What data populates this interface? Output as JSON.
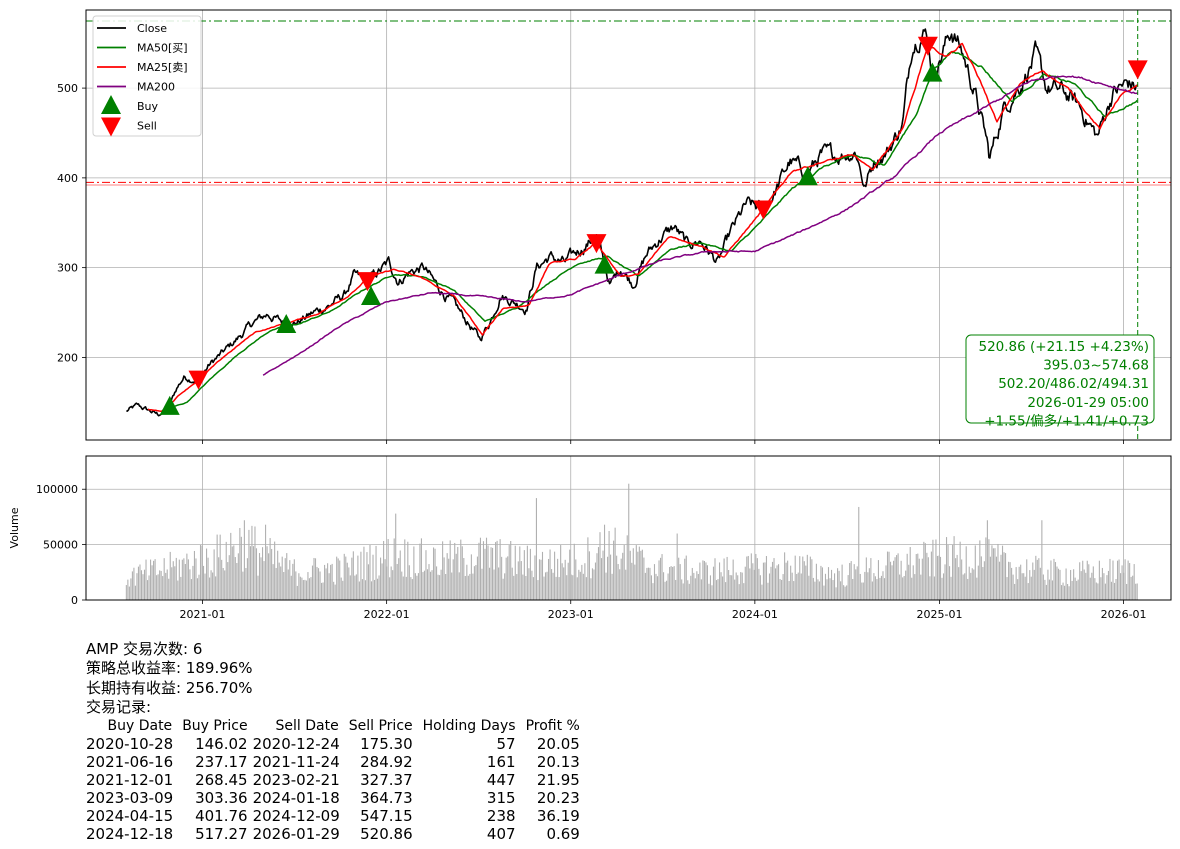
{
  "chart_data": [
    {
      "type": "line",
      "symbol": "AMP",
      "ylim": [
        108,
        587
      ],
      "yticks": [
        200,
        300,
        400,
        500
      ],
      "xlim": [
        "2020-05-15",
        "2026-04-05"
      ],
      "xticks": [
        "2021-01",
        "2022-01",
        "2023-01",
        "2024-01",
        "2025-01",
        "2026-01"
      ],
      "grid": true,
      "legend_position": "upper-left",
      "legend": [
        {
          "label": "Close",
          "color": "#000000",
          "kind": "line"
        },
        {
          "label": "MA50[买]",
          "color": "#008000",
          "kind": "line"
        },
        {
          "label": "MA25[卖]",
          "color": "#ff0000",
          "kind": "line"
        },
        {
          "label": "MA200",
          "color": "#800080",
          "kind": "line"
        },
        {
          "label": "Buy",
          "color": "#008000",
          "kind": "marker-up"
        },
        {
          "label": "Sell",
          "color": "#ff0000",
          "kind": "marker-down"
        }
      ],
      "hlines": [
        {
          "y": 574.68,
          "color": "#008000",
          "style": "dashdot"
        },
        {
          "y": 395.03,
          "color": "#ff0000",
          "style": "dashdot"
        },
        {
          "y": 392.0,
          "color": "#ff8080",
          "style": "solid"
        }
      ],
      "vline": {
        "x": "2026-01-29",
        "color": "#008000",
        "style": "dashed"
      },
      "series": [
        {
          "name": "Close",
          "color": "#000000",
          "points": [
            [
              "2020-08-03",
              140
            ],
            [
              "2020-08-25",
              146
            ],
            [
              "2020-09-20",
              140
            ],
            [
              "2020-10-05",
              136
            ],
            [
              "2020-10-28",
              146
            ],
            [
              "2020-11-10",
              165
            ],
            [
              "2020-11-25",
              178
            ],
            [
              "2020-12-24",
              175
            ],
            [
              "2021-01-15",
              192
            ],
            [
              "2021-02-10",
              205
            ],
            [
              "2021-03-10",
              220
            ],
            [
              "2021-04-10",
              238
            ],
            [
              "2021-05-10",
              248
            ],
            [
              "2021-06-16",
              237
            ],
            [
              "2021-07-10",
              240
            ],
            [
              "2021-08-10",
              250
            ],
            [
              "2021-09-10",
              258
            ],
            [
              "2021-10-10",
              270
            ],
            [
              "2021-10-28",
              290
            ],
            [
              "2021-11-24",
              285
            ],
            [
              "2021-12-10",
              292
            ],
            [
              "2022-01-05",
              305
            ],
            [
              "2022-01-25",
              285
            ],
            [
              "2022-02-15",
              295
            ],
            [
              "2022-03-15",
              300
            ],
            [
              "2022-04-10",
              280
            ],
            [
              "2022-05-10",
              262
            ],
            [
              "2022-06-20",
              232
            ],
            [
              "2022-07-05",
              220
            ],
            [
              "2022-07-25",
              240
            ],
            [
              "2022-08-15",
              270
            ],
            [
              "2022-09-10",
              262
            ],
            [
              "2022-10-05",
              255
            ],
            [
              "2022-10-25",
              300
            ],
            [
              "2022-11-20",
              312
            ],
            [
              "2022-12-20",
              305
            ],
            [
              "2023-01-15",
              318
            ],
            [
              "2023-02-21",
              335
            ],
            [
              "2023-03-20",
              280
            ],
            [
              "2023-04-10",
              300
            ],
            [
              "2023-05-05",
              282
            ],
            [
              "2023-06-01",
              315
            ],
            [
              "2023-07-01",
              335
            ],
            [
              "2023-07-25",
              345
            ],
            [
              "2023-08-20",
              325
            ],
            [
              "2023-09-15",
              330
            ],
            [
              "2023-10-20",
              305
            ],
            [
              "2023-11-15",
              340
            ],
            [
              "2023-12-15",
              370
            ],
            [
              "2024-01-18",
              365
            ],
            [
              "2024-02-10",
              385
            ],
            [
              "2024-03-10",
              418
            ],
            [
              "2024-04-15",
              405
            ],
            [
              "2024-05-10",
              425
            ],
            [
              "2024-06-10",
              425
            ],
            [
              "2024-07-20",
              430
            ],
            [
              "2024-08-06",
              390
            ],
            [
              "2024-08-25",
              420
            ],
            [
              "2024-09-20",
              430
            ],
            [
              "2024-10-20",
              460
            ],
            [
              "2024-11-08",
              550
            ],
            [
              "2024-11-25",
              565
            ],
            [
              "2024-12-09",
              560
            ],
            [
              "2024-12-18",
              515
            ],
            [
              "2025-01-10",
              545
            ],
            [
              "2025-01-25",
              565
            ],
            [
              "2025-02-15",
              540
            ],
            [
              "2025-03-10",
              500
            ],
            [
              "2025-04-05",
              440
            ],
            [
              "2025-04-10",
              420
            ],
            [
              "2025-05-10",
              480
            ],
            [
              "2025-06-10",
              505
            ],
            [
              "2025-07-10",
              535
            ],
            [
              "2025-08-01",
              500
            ],
            [
              "2025-09-05",
              495
            ],
            [
              "2025-10-05",
              480
            ],
            [
              "2025-11-10",
              445
            ],
            [
              "2025-12-10",
              495
            ],
            [
              "2026-01-10",
              505
            ],
            [
              "2026-01-29",
              500
            ]
          ]
        },
        {
          "name": "MA50[买]",
          "color": "#008000",
          "points": [
            [
              "2020-10-20",
              142
            ],
            [
              "2020-12-01",
              150
            ],
            [
              "2021-01-15",
              175
            ],
            [
              "2021-03-15",
              205
            ],
            [
              "2021-05-15",
              230
            ],
            [
              "2021-07-15",
              238
            ],
            [
              "2021-09-15",
              252
            ],
            [
              "2021-11-15",
              275
            ],
            [
              "2022-01-15",
              293
            ],
            [
              "2022-03-15",
              290
            ],
            [
              "2022-05-15",
              275
            ],
            [
              "2022-07-15",
              240
            ],
            [
              "2022-09-15",
              255
            ],
            [
              "2022-11-15",
              282
            ],
            [
              "2023-01-15",
              305
            ],
            [
              "2023-03-15",
              312
            ],
            [
              "2023-05-15",
              290
            ],
            [
              "2023-07-15",
              320
            ],
            [
              "2023-09-15",
              328
            ],
            [
              "2023-11-15",
              318
            ],
            [
              "2024-01-15",
              352
            ],
            [
              "2024-03-15",
              388
            ],
            [
              "2024-05-15",
              412
            ],
            [
              "2024-07-15",
              425
            ],
            [
              "2024-09-15",
              415
            ],
            [
              "2024-11-15",
              470
            ],
            [
              "2024-12-20",
              520
            ],
            [
              "2025-01-25",
              542
            ],
            [
              "2025-03-25",
              525
            ],
            [
              "2025-05-25",
              485
            ],
            [
              "2025-07-25",
              515
            ],
            [
              "2025-09-25",
              505
            ],
            [
              "2025-11-25",
              468
            ],
            [
              "2026-01-29",
              486
            ]
          ]
        },
        {
          "name": "MA25[卖]",
          "color": "#ff0000",
          "points": [
            [
              "2020-09-15",
              142
            ],
            [
              "2020-10-15",
              140
            ],
            [
              "2020-11-15",
              158
            ],
            [
              "2020-12-24",
              175
            ],
            [
              "2021-02-15",
              202
            ],
            [
              "2021-04-15",
              228
            ],
            [
              "2021-06-15",
              238
            ],
            [
              "2021-08-15",
              248
            ],
            [
              "2021-10-15",
              268
            ],
            [
              "2021-11-24",
              288
            ],
            [
              "2022-01-15",
              298
            ],
            [
              "2022-03-15",
              288
            ],
            [
              "2022-05-15",
              268
            ],
            [
              "2022-07-10",
              225
            ],
            [
              "2022-08-20",
              255
            ],
            [
              "2022-10-10",
              258
            ],
            [
              "2022-11-20",
              305
            ],
            [
              "2023-01-10",
              310
            ],
            [
              "2023-02-21",
              328
            ],
            [
              "2023-04-10",
              290
            ],
            [
              "2023-05-15",
              292
            ],
            [
              "2023-07-15",
              335
            ],
            [
              "2023-09-15",
              325
            ],
            [
              "2023-11-01",
              312
            ],
            [
              "2024-01-18",
              365
            ],
            [
              "2024-03-15",
              408
            ],
            [
              "2024-05-15",
              418
            ],
            [
              "2024-07-15",
              425
            ],
            [
              "2024-08-20",
              408
            ],
            [
              "2024-10-20",
              455
            ],
            [
              "2024-12-09",
              548
            ],
            [
              "2025-01-15",
              535
            ],
            [
              "2025-02-15",
              548
            ],
            [
              "2025-03-25",
              505
            ],
            [
              "2025-04-25",
              462
            ],
            [
              "2025-06-10",
              505
            ],
            [
              "2025-07-25",
              520
            ],
            [
              "2025-09-15",
              498
            ],
            [
              "2025-11-15",
              455
            ],
            [
              "2025-12-25",
              492
            ],
            [
              "2026-01-29",
              502
            ]
          ]
        },
        {
          "name": "MA200",
          "color": "#800080",
          "points": [
            [
              "2021-05-01",
              180
            ],
            [
              "2021-07-15",
              205
            ],
            [
              "2021-10-01",
              235
            ],
            [
              "2022-01-01",
              262
            ],
            [
              "2022-04-01",
              272
            ],
            [
              "2022-07-01",
              268
            ],
            [
              "2022-10-01",
              262
            ],
            [
              "2023-01-01",
              270
            ],
            [
              "2023-04-01",
              290
            ],
            [
              "2023-07-01",
              308
            ],
            [
              "2023-10-01",
              318
            ],
            [
              "2024-01-01",
              318
            ],
            [
              "2024-04-01",
              340
            ],
            [
              "2024-07-01",
              365
            ],
            [
              "2024-10-01",
              400
            ],
            [
              "2025-01-01",
              450
            ],
            [
              "2025-04-01",
              478
            ],
            [
              "2025-07-01",
              508
            ],
            [
              "2025-09-15",
              515
            ],
            [
              "2025-11-15",
              506
            ],
            [
              "2026-01-29",
              494
            ]
          ]
        }
      ],
      "buy_markers": [
        {
          "date": "2020-10-28",
          "price": 146.02
        },
        {
          "date": "2021-06-16",
          "price": 237.17
        },
        {
          "date": "2021-12-01",
          "price": 268.45
        },
        {
          "date": "2023-03-09",
          "price": 303.36
        },
        {
          "date": "2024-04-15",
          "price": 401.76
        },
        {
          "date": "2024-12-18",
          "price": 517.27
        }
      ],
      "sell_markers": [
        {
          "date": "2020-12-24",
          "price": 175.3
        },
        {
          "date": "2021-11-24",
          "price": 284.92
        },
        {
          "date": "2023-02-21",
          "price": 327.37
        },
        {
          "date": "2024-01-18",
          "price": 364.73
        },
        {
          "date": "2024-12-09",
          "price": 547.15
        },
        {
          "date": "2026-01-29",
          "price": 520.86
        }
      ],
      "info_box": [
        "520.86 (+21.15 +4.23%)",
        "395.03~574.68",
        "502.20/486.02/494.31",
        "2026-01-29 05:00",
        "+1.55/偏多/+1.41/+0.73"
      ]
    },
    {
      "type": "bar",
      "ylabel": "Volume",
      "ylim": [
        0,
        130000
      ],
      "yticks": [
        0,
        50000,
        100000
      ],
      "bar_color": "#b0b0b0",
      "volume_profile": [
        [
          "2020-08-01",
          28000
        ],
        [
          "2020-11-01",
          40000
        ],
        [
          "2021-02-01",
          55000
        ],
        [
          "2021-03-20",
          72000
        ],
        [
          "2021-07-01",
          35000
        ],
        [
          "2021-10-01",
          38000
        ],
        [
          "2022-01-15",
          55000
        ],
        [
          "2022-04-15",
          48000
        ],
        [
          "2022-07-15",
          55000
        ],
        [
          "2022-10-15",
          45000
        ],
        [
          "2023-01-15",
          48000
        ],
        [
          "2023-03-15",
          65000
        ],
        [
          "2023-06-15",
          40000
        ],
        [
          "2023-09-15",
          35000
        ],
        [
          "2023-12-15",
          38000
        ],
        [
          "2024-03-15",
          42000
        ],
        [
          "2024-06-15",
          30000
        ],
        [
          "2024-09-15",
          40000
        ],
        [
          "2024-12-15",
          50000
        ],
        [
          "2025-03-15",
          55000
        ],
        [
          "2025-06-15",
          38000
        ],
        [
          "2025-09-15",
          32000
        ],
        [
          "2025-12-15",
          35000
        ],
        [
          "2026-01-29",
          38000
        ]
      ],
      "volume_spikes": [
        [
          "2021-03-25",
          72000
        ],
        [
          "2021-05-05",
          68000
        ],
        [
          "2022-01-20",
          78000
        ],
        [
          "2022-10-26",
          92000
        ],
        [
          "2023-03-10",
          68000
        ],
        [
          "2023-04-27",
          105000
        ],
        [
          "2023-08-01",
          60000
        ],
        [
          "2024-07-25",
          84000
        ],
        [
          "2025-04-07",
          72000
        ],
        [
          "2025-07-24",
          72000
        ]
      ]
    }
  ],
  "summary": {
    "trade_count_line": "AMP 交易次数: 6",
    "strategy_return_line": "策略总收益率: 189.96%",
    "hold_return_line": "长期持有收益: 256.70%",
    "records_title": "交易记录:"
  },
  "trades": {
    "headers": [
      "Buy Date",
      "Buy Price",
      "Sell Date",
      "Sell Price",
      "Holding Days",
      "Profit %"
    ],
    "rows": [
      [
        "2020-10-28",
        "146.02",
        "2020-12-24",
        "175.30",
        "57",
        "20.05"
      ],
      [
        "2021-06-16",
        "237.17",
        "2021-11-24",
        "284.92",
        "161",
        "20.13"
      ],
      [
        "2021-12-01",
        "268.45",
        "2023-02-21",
        "327.37",
        "447",
        "21.95"
      ],
      [
        "2023-03-09",
        "303.36",
        "2024-01-18",
        "364.73",
        "315",
        "20.23"
      ],
      [
        "2024-04-15",
        "401.76",
        "2024-12-09",
        "547.15",
        "238",
        "36.19"
      ],
      [
        "2024-12-18",
        "517.27",
        "2026-01-29",
        "520.86",
        "407",
        "0.69"
      ]
    ]
  }
}
